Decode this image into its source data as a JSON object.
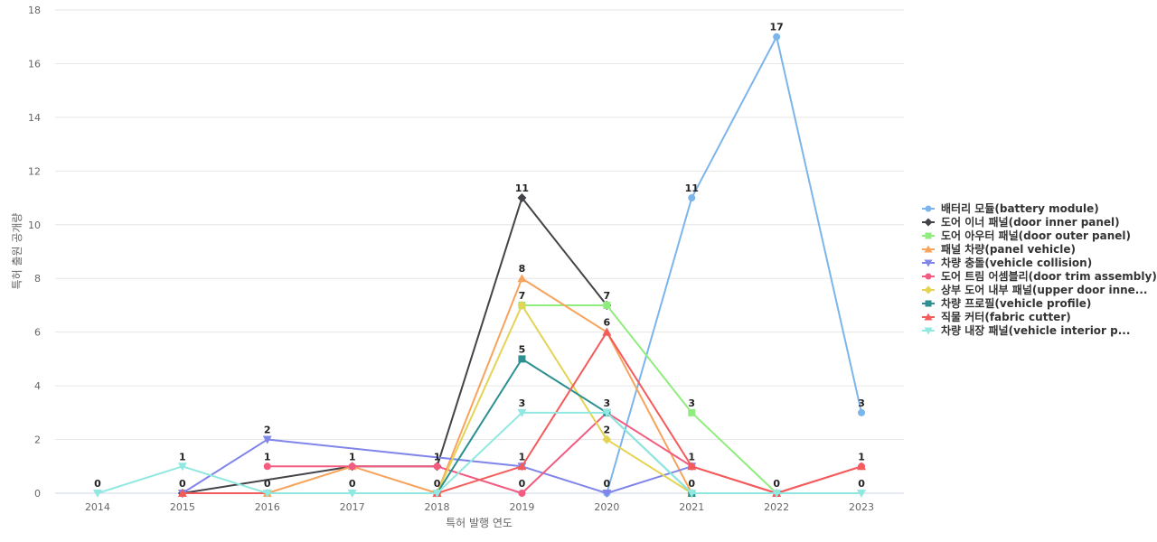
{
  "chart_data": {
    "type": "line",
    "title": "",
    "xlabel": "특허 발행 연도",
    "ylabel": "특허 출원 공개량",
    "x": [
      2014,
      2015,
      2016,
      2017,
      2018,
      2019,
      2020,
      2021,
      2022,
      2023
    ],
    "ylim": [
      0,
      18
    ],
    "yticks": [
      0,
      2,
      4,
      6,
      8,
      10,
      12,
      14,
      16,
      18
    ],
    "grid": true,
    "legend_position": "right",
    "series": [
      {
        "name": "배터리 모듈(battery module)",
        "color": "#7cb5ec",
        "marker": "circle",
        "values": [
          null,
          null,
          null,
          null,
          null,
          null,
          0,
          11,
          17,
          3
        ]
      },
      {
        "name": "도어 이너 패널(door inner panel)",
        "color": "#434348",
        "marker": "diamond",
        "values": [
          null,
          0,
          null,
          1,
          1,
          11,
          7,
          null,
          null,
          null
        ]
      },
      {
        "name": "도어 아우터 패널(door outer panel)",
        "color": "#90ed7d",
        "marker": "square",
        "values": [
          null,
          null,
          null,
          null,
          null,
          7,
          7,
          3,
          0,
          null
        ]
      },
      {
        "name": "패널 차량(panel vehicle)",
        "color": "#f7a35c",
        "marker": "triangle",
        "values": [
          null,
          null,
          0,
          1,
          0,
          8,
          6,
          0,
          null,
          null
        ]
      },
      {
        "name": "차량 충돌(vehicle collision)",
        "color": "#8085e9",
        "marker": "triangle-down",
        "values": [
          null,
          0,
          2,
          null,
          null,
          1,
          0,
          1,
          null,
          null
        ]
      },
      {
        "name": "도어 트림 어셈블리(door trim assembly)",
        "color": "#f15c80",
        "marker": "circle",
        "values": [
          null,
          null,
          1,
          1,
          1,
          0,
          3,
          1,
          0,
          1
        ]
      },
      {
        "name": "상부 도어 내부 패널(upper door inne...",
        "color": "#e4d354",
        "marker": "diamond",
        "values": [
          null,
          null,
          null,
          null,
          0,
          7,
          2,
          0,
          null,
          null
        ]
      },
      {
        "name": "차량 프로필(vehicle profile)",
        "color": "#2b908f",
        "marker": "square",
        "values": [
          null,
          null,
          null,
          null,
          0,
          5,
          3,
          0,
          null,
          null
        ]
      },
      {
        "name": "직물 커터(fabric cutter)",
        "color": "#f45b5b",
        "marker": "triangle",
        "values": [
          null,
          0,
          null,
          null,
          0,
          1,
          6,
          1,
          0,
          1
        ]
      },
      {
        "name": "차량 내장 패널(vehicle interior p...",
        "color": "#91e8e1",
        "marker": "triangle-down",
        "values": [
          0,
          1,
          0,
          0,
          0,
          3,
          3,
          0,
          0,
          0
        ]
      }
    ],
    "data_labels": [
      {
        "x": 2014,
        "text": "0",
        "y": 0
      },
      {
        "x": 2015,
        "text": "1",
        "y": 1
      },
      {
        "x": 2015,
        "text": "0",
        "y": 0
      },
      {
        "x": 2016,
        "text": "2",
        "y": 2
      },
      {
        "x": 2016,
        "text": "1",
        "y": 1
      },
      {
        "x": 2016,
        "text": "0",
        "y": 0
      },
      {
        "x": 2017,
        "text": "1",
        "y": 1
      },
      {
        "x": 2017,
        "text": "0",
        "y": 0
      },
      {
        "x": 2018,
        "text": "1",
        "y": 1
      },
      {
        "x": 2018,
        "text": "0",
        "y": 0
      },
      {
        "x": 2019,
        "text": "11",
        "y": 11
      },
      {
        "x": 2019,
        "text": "8",
        "y": 8
      },
      {
        "x": 2019,
        "text": "7",
        "y": 7
      },
      {
        "x": 2019,
        "text": "5",
        "y": 5
      },
      {
        "x": 2019,
        "text": "3",
        "y": 3
      },
      {
        "x": 2019,
        "text": "1",
        "y": 1
      },
      {
        "x": 2019,
        "text": "0",
        "y": 0
      },
      {
        "x": 2020,
        "text": "7",
        "y": 7
      },
      {
        "x": 2020,
        "text": "6",
        "y": 6
      },
      {
        "x": 2020,
        "text": "3",
        "y": 3
      },
      {
        "x": 2020,
        "text": "2",
        "y": 2
      },
      {
        "x": 2020,
        "text": "0",
        "y": 0
      },
      {
        "x": 2021,
        "text": "11",
        "y": 11
      },
      {
        "x": 2021,
        "text": "3",
        "y": 3
      },
      {
        "x": 2021,
        "text": "1",
        "y": 1
      },
      {
        "x": 2021,
        "text": "0",
        "y": 0
      },
      {
        "x": 2022,
        "text": "17",
        "y": 17
      },
      {
        "x": 2022,
        "text": "0",
        "y": 0
      },
      {
        "x": 2023,
        "text": "3",
        "y": 3
      },
      {
        "x": 2023,
        "text": "1",
        "y": 1
      },
      {
        "x": 2023,
        "text": "0",
        "y": 0
      }
    ]
  }
}
